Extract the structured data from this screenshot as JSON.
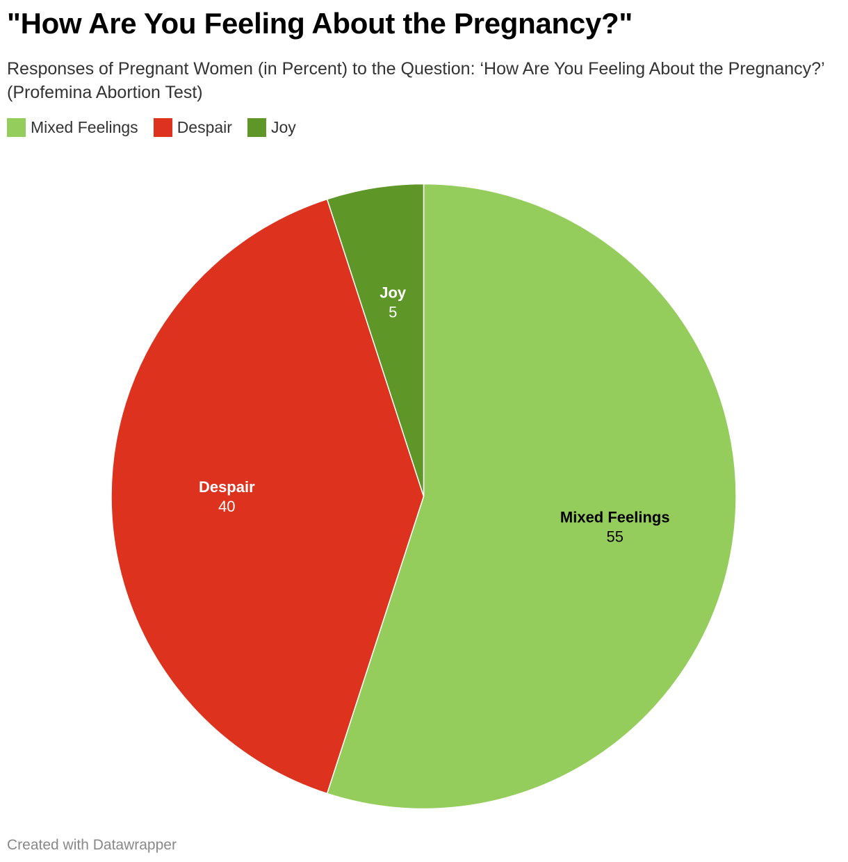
{
  "title": "\"How Are You Feeling About the Pregnancy?\"",
  "subtitle": "Responses of Pregnant Women (in Percent) to the Question: ‘How Are You Feeling About the Pregnancy?’ (Profemina Abortion Test)",
  "footer": "Created with Datawrapper",
  "chart_data": {
    "type": "pie",
    "title": "\"How Are You Feeling About the Pregnancy?\"",
    "subtitle": "Responses of Pregnant Women (in Percent) to the Question: ‘How Are You Feeling About the Pregnancy?’ (Profemina Abortion Test)",
    "legend_position": "top-left",
    "start": "12 o'clock",
    "direction": "clockwise",
    "slices": [
      {
        "label": "Mixed Feelings",
        "value": 55,
        "color": "#95cd5c",
        "label_color": "#000000"
      },
      {
        "label": "Despair",
        "value": 40,
        "color": "#dc321e",
        "label_color": "#ffffff"
      },
      {
        "label": "Joy",
        "value": 5,
        "color": "#5e9728",
        "label_color": "#ffffff"
      }
    ]
  }
}
